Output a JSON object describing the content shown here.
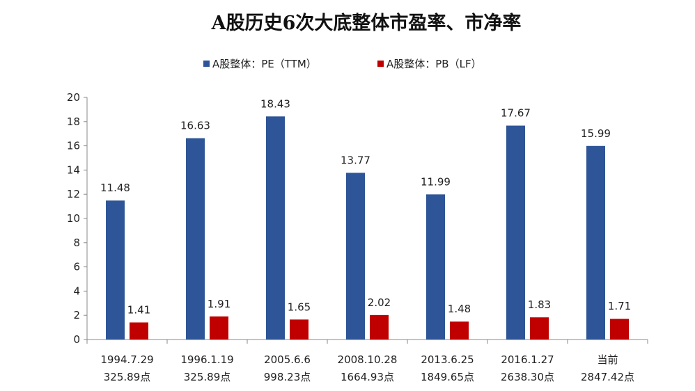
{
  "chart_data": {
    "type": "bar",
    "title": "A股历史6次大底整体市盈率、市净率",
    "categories": [
      [
        "1994.7.29",
        "325.89点"
      ],
      [
        "1996.1.19",
        "325.89点"
      ],
      [
        "2005.6.6",
        "998.23点"
      ],
      [
        "2008.10.28",
        "1664.93点"
      ],
      [
        "2013.6.25",
        "1849.65点"
      ],
      [
        "2016.1.27",
        "2638.30点"
      ],
      [
        "当前",
        "2847.42点"
      ]
    ],
    "series": [
      {
        "name": "A股整体：PE（TTM）",
        "color": "#2E5597",
        "values": [
          11.48,
          16.63,
          18.43,
          13.77,
          11.99,
          17.67,
          15.99
        ]
      },
      {
        "name": "A股整体：PB（LF）",
        "color": "#C00000",
        "values": [
          1.41,
          1.91,
          1.65,
          2.02,
          1.48,
          1.83,
          1.71
        ]
      }
    ],
    "ylim": [
      0,
      20
    ],
    "yticks": [
      0,
      2,
      4,
      6,
      8,
      10,
      12,
      14,
      16,
      18,
      20
    ],
    "legend": "top",
    "grid": false
  }
}
